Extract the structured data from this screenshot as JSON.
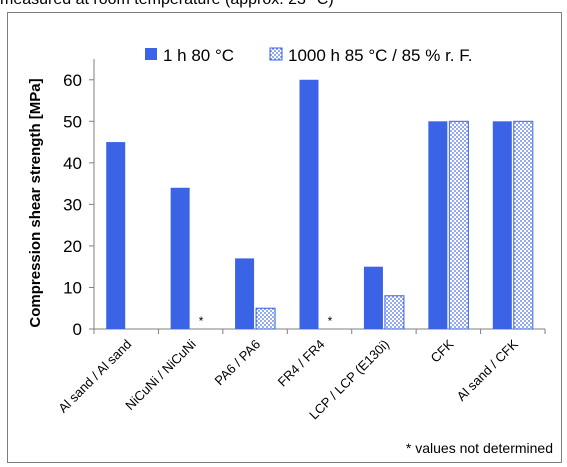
{
  "caption": "measured at room temperature (approx. 23 °C)",
  "footnote": "* values not determined",
  "colors": {
    "primary": "#3a63e6",
    "pattern_dot": "#4a6fe8",
    "axis": "#7f7f7f"
  },
  "chart_data": {
    "type": "bar",
    "ylabel": "Compression shear strength [MPa]",
    "xlabel": "",
    "ylim": [
      0,
      65
    ],
    "yticks": [
      0,
      10,
      20,
      30,
      40,
      50,
      60
    ],
    "grid": false,
    "legend_position": "top",
    "categories": [
      "Al sand / Al sand",
      "NiCuNi / NiCuNi",
      "PA6 / PA6",
      "FR4 / FR4",
      "LCP / LCP (E130i)",
      "CFK",
      "Al sand / CFK"
    ],
    "series": [
      {
        "name": "1 h 80 °C",
        "fill": "solid",
        "values": [
          45,
          34,
          17,
          60,
          15,
          50,
          50
        ]
      },
      {
        "name": "1000 h 85 °C / 85 % r. F.",
        "fill": "dotted",
        "values": [
          null,
          null,
          5,
          null,
          8,
          50,
          50
        ]
      }
    ],
    "annotations": [
      {
        "category": "NiCuNi / NiCuNi",
        "series": "1000 h 85 °C / 85 % r. F.",
        "text": "*"
      },
      {
        "category": "FR4 / FR4",
        "series": "1000 h 85 °C / 85 % r. F.",
        "text": "*"
      }
    ]
  }
}
